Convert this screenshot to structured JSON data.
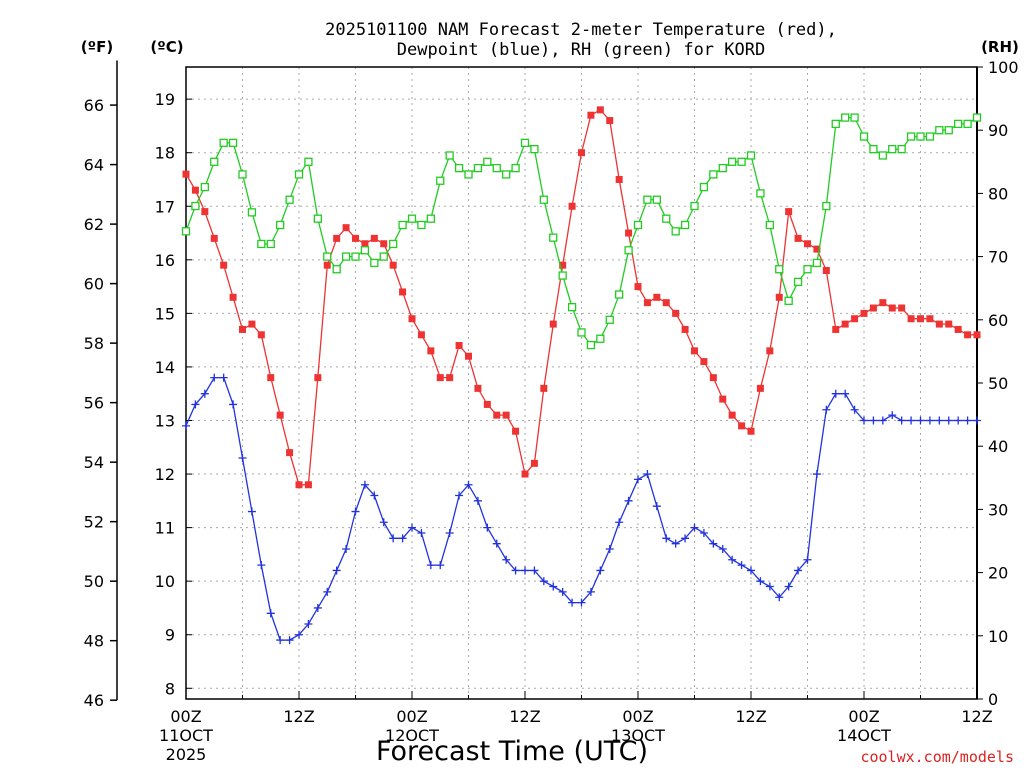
{
  "chart_data": {
    "type": "line",
    "title_line1": "2025101100 NAM Forecast 2-meter Temperature (red),",
    "title_line2": "Dewpoint (blue), RH (green) for KORD",
    "xlabel": "Forecast Time (UTC)",
    "watermark": "coolwx.com/models",
    "unit_labels": {
      "fahrenheit": "(ºF)",
      "celsius": "(ºC)",
      "rh": "(RH)"
    },
    "x_range_hours": [
      0,
      84
    ],
    "x_ticks": [
      {
        "hour": 0,
        "label": "00Z",
        "date": "11OCT",
        "year": "2025"
      },
      {
        "hour": 12,
        "label": "12Z",
        "date": "",
        "year": ""
      },
      {
        "hour": 24,
        "label": "00Z",
        "date": "12OCT",
        "year": ""
      },
      {
        "hour": 36,
        "label": "12Z",
        "date": "",
        "year": ""
      },
      {
        "hour": 48,
        "label": "00Z",
        "date": "13OCT",
        "year": ""
      },
      {
        "hour": 60,
        "label": "12Z",
        "date": "",
        "year": ""
      },
      {
        "hour": 72,
        "label": "00Z",
        "date": "14OCT",
        "year": ""
      },
      {
        "hour": 84,
        "label": "12Z",
        "date": "",
        "year": ""
      }
    ],
    "celsius_axis": {
      "min": 7.8,
      "max": 19.6,
      "ticks": [
        8,
        9,
        10,
        11,
        12,
        13,
        14,
        15,
        16,
        17,
        18,
        19
      ]
    },
    "fahrenheit_ticks": [
      46,
      48,
      50,
      52,
      54,
      56,
      58,
      60,
      62,
      64,
      66
    ],
    "rh_axis": {
      "min": 0,
      "max": 100,
      "ticks": [
        0,
        10,
        20,
        30,
        40,
        50,
        60,
        70,
        80,
        90,
        100
      ]
    },
    "series": [
      {
        "name": "Temperature",
        "unit": "C",
        "color": "#ee3333",
        "marker": "filled-square",
        "values": [
          17.6,
          17.3,
          16.9,
          16.4,
          15.9,
          15.3,
          14.7,
          14.8,
          14.6,
          13.8,
          13.1,
          12.4,
          11.8,
          11.8,
          13.8,
          15.9,
          16.4,
          16.6,
          16.4,
          16.3,
          16.4,
          16.3,
          15.9,
          15.4,
          14.9,
          14.6,
          14.3,
          13.8,
          13.8,
          14.4,
          14.2,
          13.6,
          13.3,
          13.1,
          13.1,
          12.8,
          12.0,
          12.2,
          13.6,
          14.8,
          15.9,
          17.0,
          18.0,
          18.7,
          18.8,
          18.6,
          17.5,
          16.5,
          15.5,
          15.2,
          15.3,
          15.2,
          15.0,
          14.7,
          14.3,
          14.1,
          13.8,
          13.4,
          13.1,
          12.9,
          12.8,
          13.6,
          14.3,
          15.3,
          16.9,
          16.4,
          16.3,
          16.2,
          15.8,
          14.7,
          14.8,
          14.9,
          15.0,
          15.1,
          15.2,
          15.1,
          15.1,
          14.9,
          14.9,
          14.9,
          14.8,
          14.8,
          14.7,
          14.6,
          14.6
        ]
      },
      {
        "name": "Dewpoint",
        "unit": "C",
        "color": "#2233dd",
        "marker": "plus",
        "values": [
          12.9,
          13.3,
          13.5,
          13.8,
          13.8,
          13.3,
          12.3,
          11.3,
          10.3,
          9.4,
          8.9,
          8.9,
          9.0,
          9.2,
          9.5,
          9.8,
          10.2,
          10.6,
          11.3,
          11.8,
          11.6,
          11.1,
          10.8,
          10.8,
          11.0,
          10.9,
          10.3,
          10.3,
          10.9,
          11.6,
          11.8,
          11.5,
          11.0,
          10.7,
          10.4,
          10.2,
          10.2,
          10.2,
          10.0,
          9.9,
          9.8,
          9.6,
          9.6,
          9.8,
          10.2,
          10.6,
          11.1,
          11.5,
          11.9,
          12.0,
          11.4,
          10.8,
          10.7,
          10.8,
          11.0,
          10.9,
          10.7,
          10.6,
          10.4,
          10.3,
          10.2,
          10.0,
          9.9,
          9.7,
          9.9,
          10.2,
          10.4,
          12.0,
          13.2,
          13.5,
          13.5,
          13.2,
          13.0,
          13.0,
          13.0,
          13.1,
          13.0,
          13.0,
          13.0,
          13.0,
          13.0,
          13.0,
          13.0,
          13.0,
          13.0
        ]
      },
      {
        "name": "RH",
        "unit": "%",
        "color": "#22cc22",
        "marker": "open-square",
        "values": [
          74,
          78,
          81,
          85,
          88,
          88,
          83,
          77,
          72,
          72,
          75,
          79,
          83,
          85,
          76,
          70,
          68,
          70,
          70,
          71,
          69,
          70,
          72,
          75,
          76,
          75,
          76,
          82,
          86,
          84,
          83,
          84,
          85,
          84,
          83,
          84,
          88,
          87,
          79,
          73,
          67,
          62,
          58,
          56,
          57,
          60,
          64,
          71,
          75,
          79,
          79,
          76,
          74,
          75,
          78,
          81,
          83,
          84,
          85,
          85,
          86,
          80,
          75,
          68,
          63,
          66,
          68,
          69,
          78,
          91,
          92,
          92,
          89,
          87,
          86,
          87,
          87,
          89,
          89,
          89,
          90,
          90,
          91,
          91,
          92
        ]
      }
    ]
  }
}
